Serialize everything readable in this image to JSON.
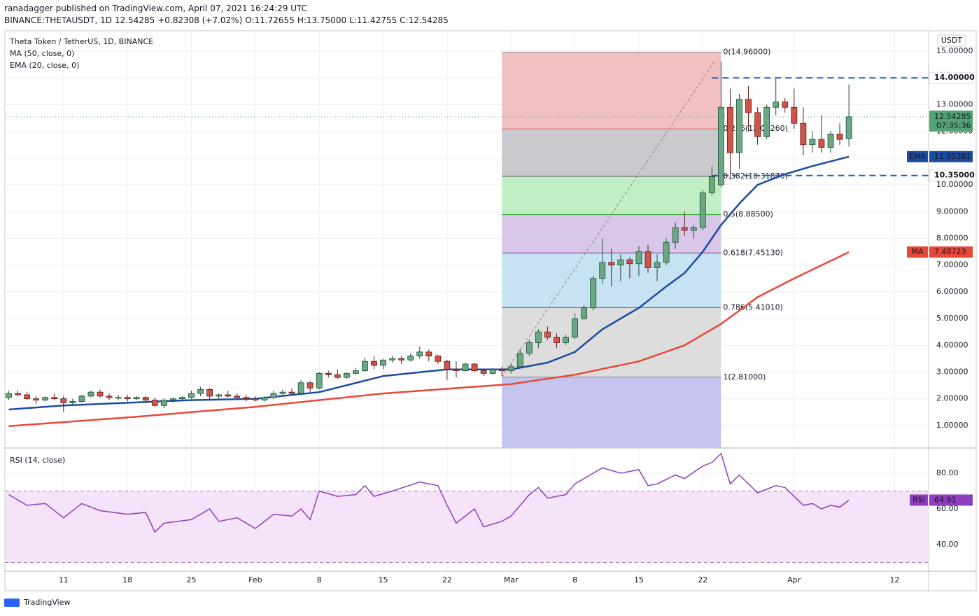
{
  "header": {
    "publisher": "ranadagger published on TradingView.com, April 07, 2021 16:24:29 UTC",
    "symbol": "BINANCE:THETAUSDT, 1D",
    "last": "12.54285",
    "change": "+0.82308 (+7.02%)",
    "open": "O:11.72655",
    "high": "H:13.75000",
    "low": "L:11.42755",
    "close": "C:12.54285"
  },
  "chart_data": [
    {
      "type": "candlestick",
      "title": "Theta Token / TetherUS, 1D, BINANCE",
      "currency": "USDT",
      "up_color": "#6aa884",
      "down_color": "#d0544a",
      "x": [
        "Jan 5",
        "Jan 6",
        "Jan 7",
        "Jan 8",
        "Jan 9",
        "Jan 10",
        "Jan 11",
        "Jan 12",
        "Jan 13",
        "Jan 14",
        "Jan 15",
        "Jan 16",
        "Jan 17",
        "Jan 18",
        "Jan 19",
        "Jan 20",
        "Jan 21",
        "Jan 22",
        "Jan 23",
        "Jan 24",
        "Jan 25",
        "Jan 26",
        "Jan 27",
        "Jan 28",
        "Jan 29",
        "Jan 30",
        "Jan 31",
        "Feb 1",
        "Feb 2",
        "Feb 3",
        "Feb 4",
        "Feb 5",
        "Feb 6",
        "Feb 7",
        "Feb 8",
        "Feb 9",
        "Feb 10",
        "Feb 11",
        "Feb 12",
        "Feb 13",
        "Feb 14",
        "Feb 15",
        "Feb 16",
        "Feb 17",
        "Feb 18",
        "Feb 19",
        "Feb 20",
        "Feb 21",
        "Feb 22",
        "Feb 23",
        "Feb 24",
        "Feb 25",
        "Feb 26",
        "Feb 27",
        "Feb 28",
        "Mar 1",
        "Mar 2",
        "Mar 3",
        "Mar 4",
        "Mar 5",
        "Mar 6",
        "Mar 7",
        "Mar 8",
        "Mar 9",
        "Mar 10",
        "Mar 11",
        "Mar 12",
        "Mar 13",
        "Mar 14",
        "Mar 15",
        "Mar 16",
        "Mar 17",
        "Mar 18",
        "Mar 19",
        "Mar 20",
        "Mar 21",
        "Mar 22",
        "Mar 23",
        "Mar 24",
        "Mar 25",
        "Mar 26",
        "Mar 27",
        "Mar 28",
        "Mar 29",
        "Mar 30",
        "Mar 31",
        "Apr 1",
        "Apr 2",
        "Apr 3",
        "Apr 4",
        "Apr 5",
        "Apr 6",
        "Apr 7"
      ],
      "open": [
        2.05,
        2.2,
        2.15,
        2.0,
        1.95,
        2.05,
        2.0,
        1.85,
        1.9,
        2.1,
        2.25,
        2.1,
        2.05,
        2.05,
        2.0,
        2.05,
        1.95,
        1.75,
        1.95,
        2.0,
        2.05,
        2.2,
        2.35,
        2.1,
        2.15,
        2.1,
        2.05,
        2.0,
        1.95,
        2.05,
        2.2,
        2.25,
        2.2,
        2.6,
        2.4,
        2.95,
        2.9,
        2.8,
        2.95,
        3.05,
        3.4,
        3.25,
        3.45,
        3.5,
        3.45,
        3.6,
        3.75,
        3.6,
        3.4,
        3.1,
        3.05,
        3.3,
        3.05,
        2.95,
        3.1,
        3.05,
        3.2,
        3.7,
        4.1,
        4.5,
        4.3,
        4.1,
        4.3,
        5.0,
        5.4,
        6.5,
        7.1,
        7.0,
        7.2,
        7.05,
        7.5,
        6.9,
        7.1,
        7.85,
        8.4,
        8.3,
        8.4,
        9.7,
        10.0,
        12.9,
        11.2,
        13.2,
        12.7,
        11.8,
        12.9,
        13.1,
        12.9,
        12.3,
        11.5,
        11.7,
        11.4,
        11.9,
        11.72655
      ],
      "high": [
        2.3,
        2.3,
        2.25,
        2.1,
        2.1,
        2.2,
        2.1,
        2.0,
        2.15,
        2.3,
        2.35,
        2.2,
        2.15,
        2.15,
        2.1,
        2.1,
        2.05,
        2.0,
        2.05,
        2.1,
        2.3,
        2.45,
        2.4,
        2.2,
        2.3,
        2.2,
        2.15,
        2.1,
        2.1,
        2.3,
        2.35,
        2.4,
        2.7,
        2.65,
        3.0,
        3.05,
        3.1,
        3.0,
        3.15,
        3.55,
        3.6,
        3.5,
        3.6,
        3.6,
        3.7,
        3.95,
        3.85,
        3.65,
        3.45,
        3.4,
        3.35,
        3.35,
        3.1,
        3.15,
        3.2,
        3.3,
        3.85,
        4.2,
        4.6,
        4.7,
        4.45,
        4.4,
        5.2,
        5.5,
        6.6,
        8.0,
        7.6,
        7.4,
        7.3,
        7.7,
        7.75,
        7.4,
        8.0,
        8.6,
        9.0,
        8.5,
        9.8,
        10.7,
        14.6,
        13.6,
        13.4,
        13.7,
        12.9,
        13.0,
        14.0,
        13.25,
        13.6,
        12.9,
        12.0,
        12.6,
        12.0,
        12.3,
        13.75
      ],
      "low": [
        1.95,
        2.1,
        1.95,
        1.8,
        1.9,
        1.95,
        1.5,
        1.75,
        1.85,
        2.05,
        2.05,
        1.95,
        1.95,
        1.9,
        1.95,
        1.85,
        1.7,
        1.65,
        1.85,
        1.95,
        2.0,
        2.1,
        2.0,
        2.0,
        2.05,
        2.0,
        1.9,
        1.9,
        1.9,
        2.0,
        2.1,
        2.15,
        2.15,
        2.25,
        2.35,
        2.8,
        2.75,
        2.75,
        2.9,
        3.0,
        3.1,
        3.1,
        3.35,
        3.3,
        3.4,
        3.5,
        3.4,
        3.3,
        2.7,
        2.8,
        3.0,
        3.0,
        2.85,
        2.9,
        2.85,
        2.95,
        3.15,
        3.6,
        3.9,
        4.2,
        3.9,
        4.0,
        4.25,
        4.95,
        5.3,
        6.3,
        6.2,
        6.4,
        6.5,
        6.6,
        6.7,
        6.4,
        7.0,
        7.6,
        8.1,
        8.0,
        8.3,
        9.6,
        9.9,
        10.2,
        10.6,
        12.0,
        11.5,
        11.7,
        12.6,
        12.7,
        12.1,
        11.1,
        11.2,
        11.2,
        11.2,
        11.5,
        11.42755
      ],
      "close": [
        2.2,
        2.15,
        2.0,
        1.95,
        2.05,
        2.0,
        1.85,
        1.9,
        2.1,
        2.25,
        2.1,
        2.05,
        2.05,
        2.0,
        2.05,
        1.95,
        1.75,
        1.95,
        2.0,
        2.05,
        2.2,
        2.35,
        2.1,
        2.15,
        2.1,
        2.05,
        2.0,
        1.95,
        2.05,
        2.2,
        2.25,
        2.2,
        2.6,
        2.4,
        2.95,
        2.9,
        2.8,
        2.95,
        3.05,
        3.4,
        3.25,
        3.45,
        3.5,
        3.45,
        3.6,
        3.75,
        3.6,
        3.4,
        3.1,
        3.05,
        3.3,
        3.05,
        2.95,
        3.1,
        3.05,
        3.2,
        3.7,
        4.1,
        4.5,
        4.3,
        4.1,
        4.3,
        5.0,
        5.4,
        6.5,
        7.1,
        7.0,
        7.2,
        7.05,
        7.5,
        6.9,
        7.1,
        7.85,
        8.4,
        8.3,
        8.4,
        9.7,
        10.3,
        12.9,
        11.2,
        13.2,
        12.7,
        11.8,
        12.9,
        13.1,
        12.9,
        12.3,
        11.5,
        11.7,
        11.4,
        11.9,
        11.7,
        12.54285
      ],
      "countdown": "07:35:36",
      "last_color": "#53a174",
      "ylim": [
        0.16,
        15.76
      ],
      "yticks": [
        {
          "value": 1,
          "label": "1.00000"
        },
        {
          "value": 2,
          "label": "2.00000"
        },
        {
          "value": 3,
          "label": "3.00000"
        },
        {
          "value": 4,
          "label": "4.00000"
        },
        {
          "value": 5,
          "label": "5.00000"
        },
        {
          "value": 6,
          "label": "6.00000"
        },
        {
          "value": 7,
          "label": "7.00000"
        },
        {
          "value": 8,
          "label": "8.00000"
        },
        {
          "value": 9,
          "label": "9.00000"
        },
        {
          "value": 10,
          "label": "10.00000"
        },
        {
          "value": 11,
          "label": "11.00000"
        },
        {
          "value": 12,
          "label": "12.00000"
        },
        {
          "value": 13,
          "label": "13.00000"
        },
        {
          "value": 14,
          "label": "14.00000"
        },
        {
          "value": 15,
          "label": "15.00000"
        }
      ],
      "xticks": [
        {
          "value": "Jan 11",
          "label": "11"
        },
        {
          "value": "Jan 18",
          "label": "18"
        },
        {
          "value": "Jan 25",
          "label": "25"
        },
        {
          "value": "Feb 1",
          "label": "Feb"
        },
        {
          "value": "Feb 8",
          "label": "8"
        },
        {
          "value": "Feb 15",
          "label": "15"
        },
        {
          "value": "Feb 22",
          "label": "22"
        },
        {
          "value": "Mar 1",
          "label": "Mar"
        },
        {
          "value": "Mar 8",
          "label": "8"
        },
        {
          "value": "Mar 15",
          "label": "15"
        },
        {
          "value": "Mar 22",
          "label": "22"
        },
        {
          "value": "Apr 1",
          "label": "Apr"
        },
        {
          "value": "Apr 12",
          "label": "12"
        }
      ],
      "grid": true,
      "series": [
        {
          "name": "MA (50, close, 0)",
          "tag": "MA",
          "color": "#e8483a",
          "x": [
            "Jan 5",
            "Jan 18",
            "Feb 1",
            "Feb 15",
            "Mar 1",
            "Mar 8",
            "Mar 15",
            "Mar 20",
            "Mar 24",
            "Mar 28",
            "Apr 1",
            "Apr 7"
          ],
          "values": [
            0.98,
            1.3,
            1.7,
            2.2,
            2.55,
            2.9,
            3.4,
            4.0,
            4.8,
            5.8,
            6.5,
            7.48723
          ]
        },
        {
          "name": "EMA (20, close, 0)",
          "tag": "EMA",
          "color": "#1c4ca0",
          "x": [
            "Jan 5",
            "Jan 11",
            "Jan 18",
            "Jan 25",
            "Feb 1",
            "Feb 8",
            "Feb 15",
            "Feb 22",
            "Mar 1",
            "Mar 5",
            "Mar 8",
            "Mar 11",
            "Mar 15",
            "Mar 18",
            "Mar 20",
            "Mar 22",
            "Mar 24",
            "Mar 26",
            "Mar 28",
            "Mar 31",
            "Apr 3",
            "Apr 7"
          ],
          "values": [
            1.6,
            1.75,
            1.85,
            1.95,
            2.0,
            2.25,
            2.85,
            3.1,
            3.1,
            3.35,
            3.75,
            4.6,
            5.4,
            6.2,
            6.7,
            7.5,
            8.5,
            9.3,
            10.0,
            10.4,
            10.7,
            11.05381
          ]
        }
      ],
      "fib": {
        "start": "Feb 28",
        "end": "Mar 24",
        "below_fill": "#c4c4ee",
        "levels": [
          {
            "value": 14.96,
            "label": "0(14.96000)",
            "color": "#888888"
          },
          {
            "value": 12.0926,
            "label": "0.236(12.09260)",
            "color": "#e06666",
            "fill": "#f1c0c0"
          },
          {
            "value": 10.3187,
            "label": "0.382(10.31870)",
            "color": "#555555",
            "fill": "#cacace"
          },
          {
            "value": 8.885,
            "label": "0.5(8.88500)",
            "color": "#2e9e2e",
            "fill": "#c2eec4"
          },
          {
            "value": 7.4513,
            "label": "0.618(7.45130)",
            "color": "#7a2c8c",
            "fill": "#d9c7e9"
          },
          {
            "value": 5.4101,
            "label": "0.786(5.41010)",
            "color": "#1d8fa8",
            "fill": "#c7e2f3"
          },
          {
            "value": 2.81,
            "label": "1(2.81000)",
            "color": "#888888",
            "fill": "#dddddd"
          }
        ]
      },
      "hlines": {
        "start": "Mar 23",
        "color": "#1f5fc0",
        "levels": [
          {
            "value": 14,
            "label": "14.00000"
          },
          {
            "value": 10.35,
            "label": "10.35000"
          }
        ]
      }
    },
    {
      "type": "line",
      "title": "RSI (14, close)",
      "tag": "RSI",
      "color": "#8e3fbd",
      "ylim": [
        25.5,
        93.7
      ],
      "yticks": [
        {
          "value": 40,
          "label": "40.00"
        },
        {
          "value": 60,
          "label": "60.00"
        },
        {
          "value": 80,
          "label": "80.00"
        }
      ],
      "band": [
        30,
        70
      ],
      "x": [
        "Jan 5",
        "Jan 7",
        "Jan 9",
        "Jan 11",
        "Jan 13",
        "Jan 15",
        "Jan 18",
        "Jan 20",
        "Jan 21",
        "Jan 22",
        "Jan 25",
        "Jan 27",
        "Jan 28",
        "Jan 30",
        "Feb 1",
        "Feb 3",
        "Feb 5",
        "Feb 6",
        "Feb 7",
        "Feb 8",
        "Feb 10",
        "Feb 12",
        "Feb 13",
        "Feb 14",
        "Feb 16",
        "Feb 19",
        "Feb 21",
        "Feb 22",
        "Feb 23",
        "Feb 25",
        "Feb 26",
        "Feb 28",
        "Mar 1",
        "Mar 3",
        "Mar 4",
        "Mar 5",
        "Mar 7",
        "Mar 8",
        "Mar 10",
        "Mar 11",
        "Mar 13",
        "Mar 15",
        "Mar 16",
        "Mar 17",
        "Mar 19",
        "Mar 20",
        "Mar 22",
        "Mar 23",
        "Mar 24",
        "Mar 25",
        "Mar 26",
        "Mar 28",
        "Mar 30",
        "Mar 31",
        "Apr 2",
        "Apr 3",
        "Apr 4",
        "Apr 5",
        "Apr 6",
        "Apr 7"
      ],
      "values": [
        68,
        62,
        63,
        55,
        63,
        59,
        57,
        58,
        47,
        52,
        54,
        60,
        53,
        55,
        49,
        57,
        56,
        60,
        54,
        70,
        67,
        68,
        73,
        67,
        70,
        75,
        73,
        62,
        52,
        60,
        50,
        53,
        56,
        68,
        72,
        66,
        68,
        74,
        80,
        83,
        80,
        82,
        73,
        74,
        79,
        77,
        84,
        86,
        91,
        74,
        79,
        69,
        73,
        72,
        62,
        63,
        60,
        62,
        61,
        64.91
      ]
    }
  ],
  "footer": {
    "brand": "TradingView"
  }
}
